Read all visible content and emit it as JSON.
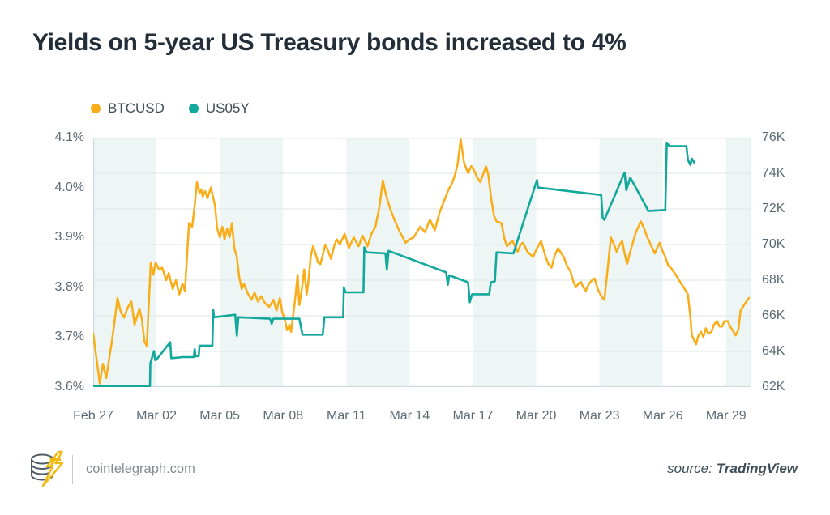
{
  "page": {
    "title": "Yields on 5-year US Treasury bonds increased to 4%"
  },
  "legend": {
    "items": [
      {
        "label": "BTCUSD",
        "color": "#f9ad18"
      },
      {
        "label": "US05Y",
        "color": "#14a89d"
      }
    ]
  },
  "footer": {
    "site_label": "cointelegraph.com",
    "source_prefix": "source:",
    "source_name": "TradingView"
  },
  "colors": {
    "band_mint": "#edf6f4",
    "band_white": "#ffffff",
    "gridline": "#e4eaec",
    "plot_border": "#cfdde2",
    "axis_text": "#5b6a73"
  },
  "chart_data": {
    "type": "line",
    "title": "Yields on 5-year US Treasury bonds increased to 4%",
    "x_axis": {
      "unit": "date",
      "tick_labels": [
        "Feb 27",
        "Mar 02",
        "Mar 05",
        "Mar 08",
        "Mar 11",
        "Mar 14",
        "Mar 17",
        "Mar 20",
        "Mar 23",
        "Mar 26",
        "Mar 29"
      ],
      "tick_days": [
        0,
        3,
        6,
        9,
        12,
        15,
        18,
        21,
        24,
        27,
        30
      ],
      "range_days": [
        0,
        31.2
      ]
    },
    "left_axis": {
      "series": "US05Y",
      "unit": "%",
      "tick_labels": [
        "4.1%",
        "4.0%",
        "3.9%",
        "3.8%",
        "3.7%",
        "3.6%"
      ],
      "range": [
        3.6,
        4.1
      ]
    },
    "right_axis": {
      "series": "BTCUSD",
      "unit": "K",
      "tick_labels": [
        "76K",
        "74K",
        "72K",
        "70K",
        "68K",
        "66K",
        "64K",
        "62K"
      ],
      "range": [
        62,
        76
      ]
    },
    "grid": {
      "horizontal_lines_axis": "right",
      "horizontal_step": 2,
      "band_interval_days": 3,
      "band_colors": [
        "#edf6f4",
        "#ffffff"
      ]
    },
    "legend_position": "top-left",
    "series": [
      {
        "name": "BTCUSD",
        "axis": "right",
        "color": "#f9ad18",
        "width": 2.5,
        "points": [
          [
            0.0,
            65.0
          ],
          [
            0.31,
            62.2
          ],
          [
            0.46,
            63.3
          ],
          [
            0.62,
            62.5
          ],
          [
            0.85,
            64.3
          ],
          [
            0.96,
            65.2
          ],
          [
            1.15,
            67.0
          ],
          [
            1.31,
            66.2
          ],
          [
            1.46,
            65.9
          ],
          [
            1.65,
            66.5
          ],
          [
            1.81,
            66.8
          ],
          [
            1.96,
            65.5
          ],
          [
            2.19,
            66.4
          ],
          [
            2.31,
            65.8
          ],
          [
            2.42,
            64.6
          ],
          [
            2.54,
            64.3
          ],
          [
            2.73,
            69.0
          ],
          [
            2.85,
            68.3
          ],
          [
            2.96,
            69.0
          ],
          [
            3.12,
            68.6
          ],
          [
            3.27,
            68.7
          ],
          [
            3.46,
            68.0
          ],
          [
            3.58,
            68.4
          ],
          [
            3.77,
            67.5
          ],
          [
            3.92,
            68.0
          ],
          [
            4.08,
            67.2
          ],
          [
            4.23,
            67.8
          ],
          [
            4.35,
            67.4
          ],
          [
            4.54,
            71.2
          ],
          [
            4.69,
            71.0
          ],
          [
            4.81,
            72.2
          ],
          [
            4.92,
            73.5
          ],
          [
            5.04,
            72.9
          ],
          [
            5.12,
            73.1
          ],
          [
            5.19,
            72.7
          ],
          [
            5.31,
            73.0
          ],
          [
            5.42,
            72.6
          ],
          [
            5.58,
            73.2
          ],
          [
            5.77,
            72.2
          ],
          [
            5.88,
            70.9
          ],
          [
            6.0,
            70.4
          ],
          [
            6.12,
            71.0
          ],
          [
            6.23,
            70.3
          ],
          [
            6.35,
            70.9
          ],
          [
            6.46,
            70.4
          ],
          [
            6.58,
            71.2
          ],
          [
            6.69,
            69.8
          ],
          [
            6.81,
            69.3
          ],
          [
            6.92,
            68.2
          ],
          [
            7.04,
            67.5
          ],
          [
            7.15,
            67.8
          ],
          [
            7.31,
            67.3
          ],
          [
            7.5,
            66.9
          ],
          [
            7.65,
            67.3
          ],
          [
            7.81,
            66.8
          ],
          [
            7.96,
            67.1
          ],
          [
            8.15,
            66.7
          ],
          [
            8.35,
            66.5
          ],
          [
            8.54,
            66.9
          ],
          [
            8.69,
            66.3
          ],
          [
            8.85,
            67.0
          ],
          [
            8.96,
            66.2
          ],
          [
            9.08,
            65.8
          ],
          [
            9.19,
            65.2
          ],
          [
            9.31,
            65.5
          ],
          [
            9.38,
            65.1
          ],
          [
            9.5,
            66.2
          ],
          [
            9.58,
            67.0
          ],
          [
            9.69,
            68.3
          ],
          [
            9.77,
            66.6
          ],
          [
            9.88,
            67.4
          ],
          [
            10.0,
            68.6
          ],
          [
            10.12,
            67.2
          ],
          [
            10.19,
            67.8
          ],
          [
            10.31,
            69.3
          ],
          [
            10.42,
            69.9
          ],
          [
            10.54,
            69.5
          ],
          [
            10.65,
            69.0
          ],
          [
            10.77,
            68.9
          ],
          [
            10.88,
            69.4
          ],
          [
            11.0,
            70.0
          ],
          [
            11.15,
            69.6
          ],
          [
            11.27,
            69.2
          ],
          [
            11.42,
            69.9
          ],
          [
            11.54,
            70.3
          ],
          [
            11.69,
            70.0
          ],
          [
            11.92,
            70.6
          ],
          [
            12.12,
            69.8
          ],
          [
            12.35,
            70.4
          ],
          [
            12.58,
            69.9
          ],
          [
            12.77,
            70.5
          ],
          [
            13.0,
            69.9
          ],
          [
            13.19,
            70.6
          ],
          [
            13.38,
            71.0
          ],
          [
            13.58,
            72.2
          ],
          [
            13.73,
            73.6
          ],
          [
            13.88,
            72.8
          ],
          [
            14.08,
            72.0
          ],
          [
            14.31,
            71.3
          ],
          [
            14.54,
            70.7
          ],
          [
            14.81,
            70.1
          ],
          [
            15.0,
            70.3
          ],
          [
            15.19,
            70.4
          ],
          [
            15.5,
            71.0
          ],
          [
            15.73,
            70.7
          ],
          [
            15.96,
            71.4
          ],
          [
            16.19,
            70.8
          ],
          [
            16.42,
            71.8
          ],
          [
            16.65,
            72.5
          ],
          [
            16.85,
            73.1
          ],
          [
            17.0,
            73.4
          ],
          [
            17.15,
            73.9
          ],
          [
            17.27,
            74.5
          ],
          [
            17.42,
            75.9
          ],
          [
            17.58,
            74.6
          ],
          [
            17.77,
            74.0
          ],
          [
            17.92,
            74.4
          ],
          [
            18.04,
            74.2
          ],
          [
            18.19,
            73.8
          ],
          [
            18.35,
            73.5
          ],
          [
            18.5,
            74.0
          ],
          [
            18.62,
            74.4
          ],
          [
            18.73,
            73.9
          ],
          [
            18.85,
            72.7
          ],
          [
            19.0,
            71.6
          ],
          [
            19.12,
            71.3
          ],
          [
            19.35,
            71.2
          ],
          [
            19.5,
            70.3
          ],
          [
            19.62,
            69.9
          ],
          [
            19.77,
            70.1
          ],
          [
            19.88,
            70.2
          ],
          [
            20.12,
            69.6
          ],
          [
            20.27,
            70.0
          ],
          [
            20.38,
            70.1
          ],
          [
            20.58,
            69.6
          ],
          [
            20.85,
            69.3
          ],
          [
            21.04,
            69.8
          ],
          [
            21.23,
            70.2
          ],
          [
            21.42,
            69.4
          ],
          [
            21.58,
            68.9
          ],
          [
            21.73,
            68.7
          ],
          [
            21.88,
            69.4
          ],
          [
            22.04,
            69.8
          ],
          [
            22.19,
            69.5
          ],
          [
            22.31,
            69.3
          ],
          [
            22.46,
            68.8
          ],
          [
            22.62,
            68.5
          ],
          [
            22.77,
            67.9
          ],
          [
            22.88,
            67.6
          ],
          [
            23.0,
            67.8
          ],
          [
            23.12,
            67.9
          ],
          [
            23.23,
            67.6
          ],
          [
            23.35,
            67.4
          ],
          [
            23.5,
            67.8
          ],
          [
            23.65,
            68.0
          ],
          [
            23.77,
            68.1
          ],
          [
            23.92,
            67.5
          ],
          [
            24.04,
            67.2
          ],
          [
            24.15,
            67.0
          ],
          [
            24.23,
            66.9
          ],
          [
            24.35,
            68.2
          ],
          [
            24.54,
            70.4
          ],
          [
            24.69,
            70.0
          ],
          [
            24.81,
            69.6
          ],
          [
            24.96,
            70.0
          ],
          [
            25.08,
            70.2
          ],
          [
            25.19,
            69.5
          ],
          [
            25.31,
            68.9
          ],
          [
            25.46,
            69.6
          ],
          [
            25.58,
            70.1
          ],
          [
            25.73,
            70.7
          ],
          [
            25.96,
            71.3
          ],
          [
            26.12,
            70.9
          ],
          [
            26.23,
            70.5
          ],
          [
            26.35,
            70.2
          ],
          [
            26.5,
            69.8
          ],
          [
            26.62,
            69.5
          ],
          [
            26.73,
            69.8
          ],
          [
            26.85,
            70.1
          ],
          [
            27.0,
            69.6
          ],
          [
            27.12,
            69.3
          ],
          [
            27.27,
            68.8
          ],
          [
            27.38,
            68.7
          ],
          [
            27.5,
            68.5
          ],
          [
            27.62,
            68.3
          ],
          [
            27.77,
            68.0
          ],
          [
            27.88,
            67.8
          ],
          [
            28.04,
            67.5
          ],
          [
            28.19,
            67.2
          ],
          [
            28.31,
            65.9
          ],
          [
            28.38,
            64.9
          ],
          [
            28.5,
            64.6
          ],
          [
            28.58,
            64.4
          ],
          [
            28.69,
            64.9
          ],
          [
            28.81,
            65.1
          ],
          [
            28.92,
            64.8
          ],
          [
            29.04,
            65.3
          ],
          [
            29.15,
            65.0
          ],
          [
            29.31,
            65.1
          ],
          [
            29.42,
            65.5
          ],
          [
            29.58,
            65.7
          ],
          [
            29.69,
            65.4
          ],
          [
            29.81,
            65.4
          ],
          [
            29.92,
            65.7
          ],
          [
            30.08,
            65.7
          ],
          [
            30.19,
            65.4
          ],
          [
            30.31,
            65.2
          ],
          [
            30.46,
            64.9
          ],
          [
            30.58,
            65.2
          ],
          [
            30.69,
            66.3
          ],
          [
            30.85,
            66.6
          ],
          [
            30.96,
            66.8
          ],
          [
            31.08,
            67.0
          ]
        ]
      },
      {
        "name": "US05Y",
        "axis": "left",
        "color": "#14a89d",
        "width": 2.6,
        "points": [
          [
            0.0,
            3.602
          ],
          [
            2.69,
            3.602
          ],
          [
            2.71,
            3.648
          ],
          [
            2.88,
            3.672
          ],
          [
            2.94,
            3.654
          ],
          [
            3.0,
            3.655
          ],
          [
            3.65,
            3.69
          ],
          [
            3.7,
            3.658
          ],
          [
            3.73,
            3.658
          ],
          [
            4.23,
            3.66
          ],
          [
            4.77,
            3.66
          ],
          [
            4.81,
            3.676
          ],
          [
            4.85,
            3.662
          ],
          [
            5.0,
            3.662
          ],
          [
            5.04,
            3.683
          ],
          [
            5.65,
            3.683
          ],
          [
            5.69,
            3.754
          ],
          [
            5.73,
            3.74
          ],
          [
            6.73,
            3.745
          ],
          [
            6.81,
            3.703
          ],
          [
            6.88,
            3.74
          ],
          [
            8.38,
            3.737
          ],
          [
            8.46,
            3.727
          ],
          [
            8.54,
            3.737
          ],
          [
            9.77,
            3.737
          ],
          [
            9.85,
            3.72
          ],
          [
            9.92,
            3.705
          ],
          [
            10.88,
            3.705
          ],
          [
            10.96,
            3.74
          ],
          [
            11.85,
            3.74
          ],
          [
            11.88,
            3.8
          ],
          [
            11.96,
            3.79
          ],
          [
            12.81,
            3.79
          ],
          [
            12.85,
            3.88
          ],
          [
            12.96,
            3.87
          ],
          [
            13.85,
            3.868
          ],
          [
            13.92,
            3.835
          ],
          [
            14.0,
            3.873
          ],
          [
            16.73,
            3.83
          ],
          [
            16.81,
            3.805
          ],
          [
            16.88,
            3.824
          ],
          [
            17.77,
            3.81
          ],
          [
            17.85,
            3.77
          ],
          [
            17.96,
            3.786
          ],
          [
            18.77,
            3.786
          ],
          [
            18.85,
            3.81
          ],
          [
            19.04,
            3.812
          ],
          [
            19.12,
            3.87
          ],
          [
            19.92,
            3.868
          ],
          [
            20.96,
            4.005
          ],
          [
            21.04,
            4.015
          ],
          [
            21.08,
            4.0
          ],
          [
            24.08,
            3.985
          ],
          [
            24.15,
            3.94
          ],
          [
            24.23,
            3.935
          ],
          [
            25.19,
            4.03
          ],
          [
            25.27,
            3.995
          ],
          [
            25.46,
            4.02
          ],
          [
            26.23,
            3.96
          ],
          [
            26.31,
            3.953
          ],
          [
            27.12,
            3.955
          ],
          [
            27.19,
            4.09
          ],
          [
            27.31,
            4.083
          ],
          [
            28.12,
            4.083
          ],
          [
            28.19,
            4.056
          ],
          [
            28.31,
            4.045
          ],
          [
            28.38,
            4.058
          ],
          [
            28.5,
            4.05
          ]
        ]
      }
    ]
  }
}
